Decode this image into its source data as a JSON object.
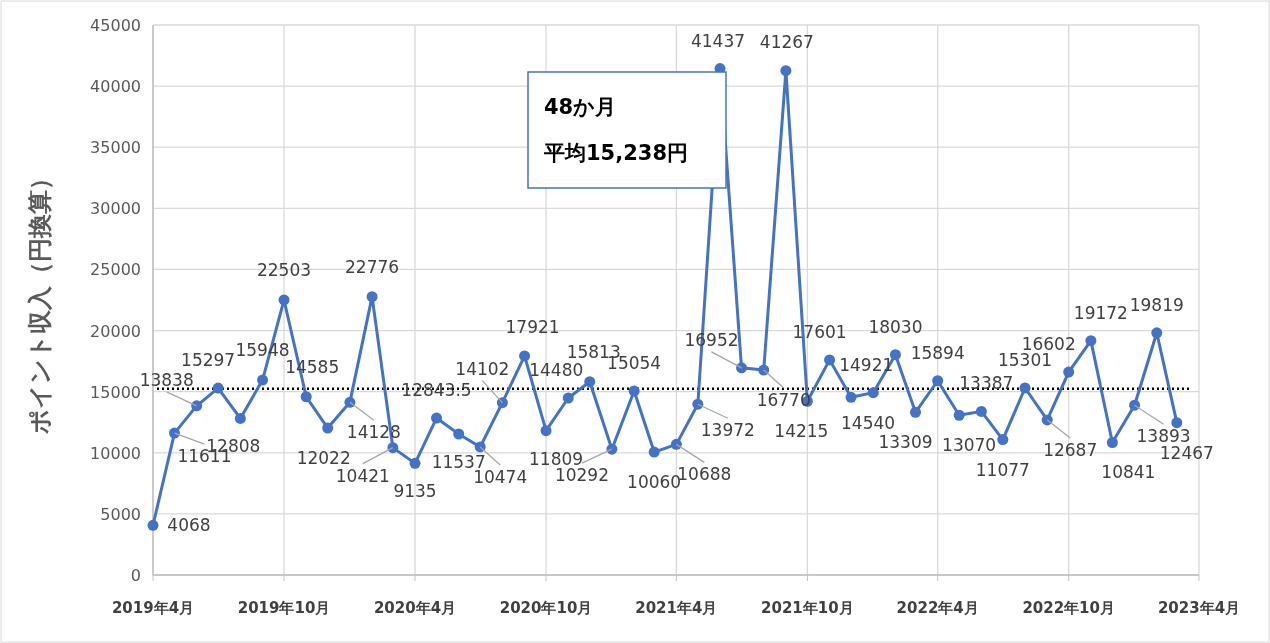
{
  "chart_data": {
    "type": "line",
    "ylabel": "ポイント収入（円換算）",
    "x": [
      "2019-04",
      "2019-05",
      "2019-06",
      "2019-07",
      "2019-08",
      "2019-09",
      "2019-10",
      "2019-11",
      "2019-12",
      "2020-01",
      "2020-02",
      "2020-03",
      "2020-04",
      "2020-05",
      "2020-06",
      "2020-07",
      "2020-08",
      "2020-09",
      "2020-10",
      "2020-11",
      "2020-12",
      "2021-01",
      "2021-02",
      "2021-03",
      "2021-04",
      "2021-05",
      "2021-06",
      "2021-07",
      "2021-08",
      "2021-09",
      "2021-10",
      "2021-11",
      "2021-12",
      "2022-01",
      "2022-02",
      "2022-03",
      "2022-04",
      "2022-05",
      "2022-06",
      "2022-07",
      "2022-08",
      "2022-09",
      "2022-10",
      "2022-11",
      "2022-12",
      "2023-01",
      "2023-02",
      "2023-03"
    ],
    "series": [
      {
        "color": "#4472c4",
        "values": [
          4068,
          11611,
          13838,
          15297,
          12808,
          15948,
          22503,
          14585,
          12022,
          14128,
          22776,
          10421,
          9135,
          12843.5,
          11537,
          10474,
          14102,
          17921,
          11809,
          14480,
          15813,
          10292,
          15054,
          10060,
          10688,
          13972,
          41437,
          16952,
          16770,
          41267,
          14215,
          17601,
          14540,
          14921,
          18030,
          13309,
          15894,
          13070,
          13387,
          11077,
          15301,
          12687,
          16602,
          19172,
          10841,
          13893,
          19819,
          12467
        ]
      }
    ],
    "xlim": [
      "2019-04",
      "2023-04"
    ],
    "xticks": [
      {
        "value": "2019-04",
        "label": "2019年4月"
      },
      {
        "value": "2019-10",
        "label": "2019年10月"
      },
      {
        "value": "2020-04",
        "label": "2020年4月"
      },
      {
        "value": "2020-10",
        "label": "2020年10月"
      },
      {
        "value": "2021-04",
        "label": "2021年4月"
      },
      {
        "value": "2021-10",
        "label": "2021年10月"
      },
      {
        "value": "2022-04",
        "label": "2022年4月"
      },
      {
        "value": "2022-10",
        "label": "2022年10月"
      },
      {
        "value": "2023-04",
        "label": "2023年4月"
      }
    ],
    "ylim": [
      0,
      45000
    ],
    "yticks": [
      0,
      5000,
      10000,
      15000,
      20000,
      25000,
      30000,
      35000,
      40000,
      45000
    ],
    "ref_lines": [
      {
        "axis": "y",
        "value": 15238,
        "color": "#000000",
        "line_style": "dotted"
      }
    ],
    "annotations": [
      "48か月",
      "平均15,238円"
    ],
    "data_labels": true,
    "grid": true,
    "marker": "circle",
    "line_style": "solid"
  }
}
